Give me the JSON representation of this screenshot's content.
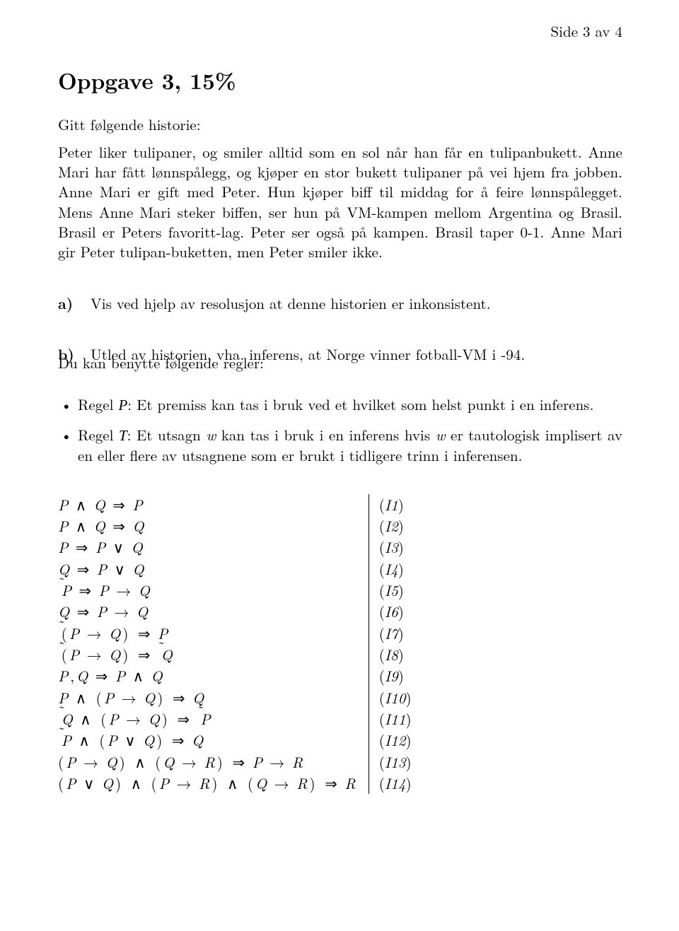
{
  "page_header": "Side 3 av 4",
  "title": "Oppgave 3, 15%",
  "intro": "Gitt følgende historie:",
  "story": "Peter liker tulipaner, og smiler alltid som en sol når han får en tulipanbukett. Anne Mari har fått lønnspålegg, og kjøper en stor bukett tulipaner på vei hjem fra jobben. Anne Mari er gift med Peter. Hun kjøper biff til middag for å feire lønnspålegget. Mens Anne Mari steker biffen, ser hun på VM-kampen mellom Argentina og Brasil. Brasil er Peters favoritt-lag. Peter ser også på kampen. Brasil taper 0-1. Anne Mari gir Peter tulipan-buketten, men Peter smiler ikke.",
  "part_a": {
    "label": "a)",
    "text": "Vis ved hjelp av resolusjon at denne historien er inkonsistent."
  },
  "part_b": {
    "label": "b)",
    "text": "Utled av historien, vha. inferens, at Norge vinner fotball-VM i -94."
  },
  "rules_intro": "Du kan benytte følgende regler:",
  "rule_p_prefix": "Regel ",
  "rule_p_sym": "P",
  "rule_p_text": ": Et premiss kan tas i bruk ved et hvilket som helst punkt i en inferens.",
  "rule_t_prefix": "Regel ",
  "rule_t_sym": "T",
  "rule_t_text_1": ": Et utsagn ",
  "rule_t_w1": "w",
  "rule_t_text_2": " kan tas i bruk i en inferens hvis ",
  "rule_t_w2": "w",
  "rule_t_text_3": " er tautologisk implisert av en eller flere av utsagnene som er brukt i tidligere trinn i inferensen.",
  "inference_rules": [
    {
      "formula_html": "P <span class='op'>∧</span> Q <span class='op'>⇒</span> P",
      "id": "(I1)"
    },
    {
      "formula_html": "P <span class='op'>∧</span> Q <span class='op'>⇒</span> Q",
      "id": "(I2)"
    },
    {
      "formula_html": "P <span class='op'>⇒</span> P <span class='op'>∨</span> Q",
      "id": "(I3)"
    },
    {
      "formula_html": "Q <span class='op'>⇒</span> P <span class='op'>∨</span> Q",
      "id": "(I4)"
    },
    {
      "formula_html": "<span class='neg'>˜</span>P <span class='op'>⇒</span> P <span class='op'>→</span> Q",
      "id": "(I5)"
    },
    {
      "formula_html": "Q <span class='op'>⇒</span> P <span class='op'>→</span> Q",
      "id": "(I6)"
    },
    {
      "formula_html": "<span class='neg'>˜</span><span class='op' style='padding-left:0'>(</span>P <span class='op'>→</span> Q<span class='op'>)</span> <span class='op'>⇒</span> P",
      "id": "(I7)"
    },
    {
      "formula_html": "<span class='neg'>˜</span><span class='op' style='padding-left:0'>(</span>P <span class='op'>→</span> Q<span class='op'>)</span> <span class='op'>⇒</span> <span class='neg'>˜</span>Q",
      "id": "(I8)"
    },
    {
      "formula_html": "P<span class='op'>,</span>Q <span class='op'>⇒</span> P <span class='op'>∧</span> Q",
      "id": "(I9)"
    },
    {
      "formula_html": "P <span class='op'>∧</span> <span class='op'>(</span>P <span class='op'>→</span> Q<span class='op'>)</span> <span class='op'>⇒</span> Q",
      "id": "(I10)"
    },
    {
      "formula_html": "<span class='neg'>˜</span>Q <span class='op'>∧</span> <span class='op'>(</span>P <span class='op'>→</span> Q<span class='op'>)</span> <span class='op'>⇒</span> <span class='neg'>˜</span>P",
      "id": "(I11)"
    },
    {
      "formula_html": "<span class='neg'>˜</span>P <span class='op'>∧</span> <span class='op'>(</span>P <span class='op'>∨</span> Q<span class='op'>)</span> <span class='op'>⇒</span> Q",
      "id": "(I12)"
    },
    {
      "formula_html": "<span class='op' style='padding-left:0'>(</span>P <span class='op'>→</span> Q<span class='op'>)</span> <span class='op'>∧</span> <span class='op'>(</span>Q <span class='op'>→</span> R<span class='op'>)</span> <span class='op'>⇒</span> P <span class='op'>→</span> R",
      "id": "(I13)"
    },
    {
      "formula_html": "<span class='op' style='padding-left:0'>(</span>P <span class='op'>∨</span> Q<span class='op'>)</span> <span class='op'>∧</span> <span class='op'>(</span>P <span class='op'>→</span> R<span class='op'>)</span> <span class='op'>∧</span> <span class='op'>(</span>Q <span class='op'>→</span> R<span class='op'>)</span> <span class='op'>⇒</span> R",
      "id": "(I14)"
    }
  ]
}
